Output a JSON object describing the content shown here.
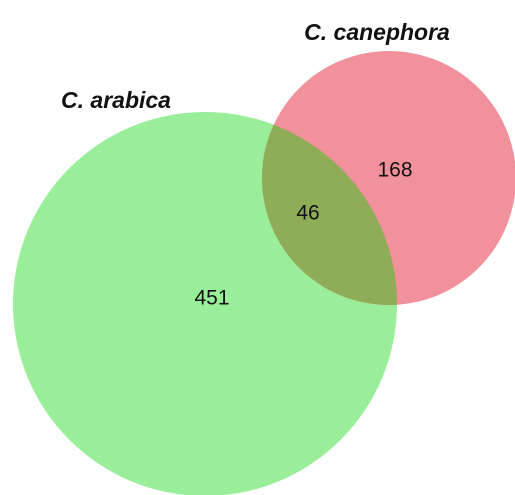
{
  "sets": [
    {
      "label": "C. arabica",
      "count": 451
    },
    {
      "label": "C. canephora",
      "count": 168
    }
  ],
  "intersection": {
    "count": 46
  }
}
